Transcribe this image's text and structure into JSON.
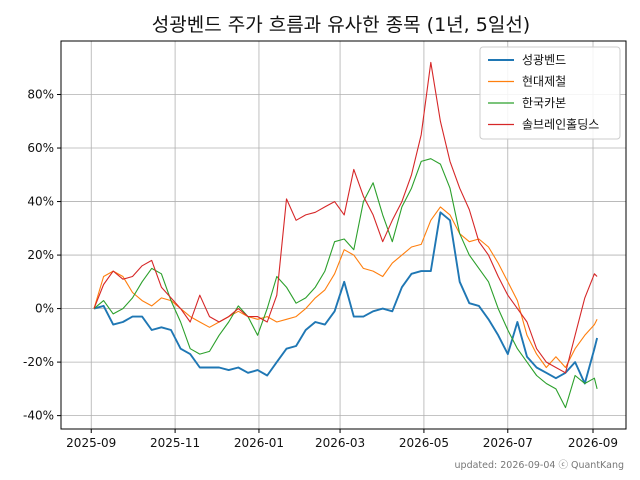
{
  "chart_data": {
    "type": "line",
    "title": "성광벤드 주가 흐름과 유사한 종목 (1년, 5일선)",
    "xlabel": "",
    "ylabel": "",
    "x_ticks": [
      "2025-09",
      "2025-11",
      "2026-01",
      "2026-03",
      "2026-05",
      "2026-07",
      "2026-09"
    ],
    "y_ticks": [
      -40,
      -20,
      0,
      20,
      40,
      60,
      80
    ],
    "y_tick_suffix": "%",
    "xlim": [
      "2025-08-10",
      "2026-09-25"
    ],
    "ylim": [
      -45,
      100
    ],
    "grid": true,
    "legend_position": "top-right",
    "footer": "updated: 2026-09-04 ⓒ QuantKang",
    "series": [
      {
        "name": "성광벤드",
        "color": "#1f77b4",
        "x": [
          "2025-09-03",
          "2025-09-10",
          "2025-09-17",
          "2025-09-24",
          "2025-10-01",
          "2025-10-08",
          "2025-10-15",
          "2025-10-22",
          "2025-10-29",
          "2025-11-05",
          "2025-11-12",
          "2025-11-19",
          "2025-11-26",
          "2025-12-03",
          "2025-12-10",
          "2025-12-17",
          "2025-12-24",
          "2025-12-31",
          "2026-01-07",
          "2026-01-14",
          "2026-01-21",
          "2026-01-28",
          "2026-02-04",
          "2026-02-11",
          "2026-02-18",
          "2026-02-25",
          "2026-03-04",
          "2026-03-11",
          "2026-03-18",
          "2026-03-25",
          "2026-04-01",
          "2026-04-08",
          "2026-04-15",
          "2026-04-22",
          "2026-04-29",
          "2026-05-06",
          "2026-05-13",
          "2026-05-20",
          "2026-05-27",
          "2026-06-03",
          "2026-06-10",
          "2026-06-17",
          "2026-06-24",
          "2026-07-01",
          "2026-07-08",
          "2026-07-15",
          "2026-07-22",
          "2026-07-29",
          "2026-08-05",
          "2026-08-12",
          "2026-08-19",
          "2026-08-26",
          "2026-09-02",
          "2026-09-04"
        ],
        "values": [
          0,
          1,
          -6,
          -5,
          -3,
          -3,
          -8,
          -7,
          -8,
          -15,
          -17,
          -22,
          -22,
          -22,
          -23,
          -22,
          -24,
          -23,
          -25,
          -20,
          -15,
          -14,
          -8,
          -5,
          -6,
          -1,
          10,
          -3,
          -3,
          -1,
          0,
          -1,
          8,
          13,
          14,
          14,
          36,
          33,
          10,
          2,
          1,
          -4,
          -10,
          -17,
          -5,
          -18,
          -22,
          -24,
          -26,
          -24,
          -20,
          -28,
          -15,
          -11
        ]
      },
      {
        "name": "현대제철",
        "color": "#ff7f0e",
        "x": [
          "2025-09-03",
          "2025-09-10",
          "2025-09-17",
          "2025-09-24",
          "2025-10-01",
          "2025-10-08",
          "2025-10-15",
          "2025-10-22",
          "2025-10-29",
          "2025-11-05",
          "2025-11-12",
          "2025-11-19",
          "2025-11-26",
          "2025-12-03",
          "2025-12-10",
          "2025-12-17",
          "2025-12-24",
          "2025-12-31",
          "2026-01-07",
          "2026-01-14",
          "2026-01-21",
          "2026-01-28",
          "2026-02-04",
          "2026-02-11",
          "2026-02-18",
          "2026-02-25",
          "2026-03-04",
          "2026-03-11",
          "2026-03-18",
          "2026-03-25",
          "2026-04-01",
          "2026-04-08",
          "2026-04-15",
          "2026-04-22",
          "2026-04-29",
          "2026-05-06",
          "2026-05-13",
          "2026-05-20",
          "2026-05-27",
          "2026-06-03",
          "2026-06-10",
          "2026-06-17",
          "2026-06-24",
          "2026-07-01",
          "2026-07-08",
          "2026-07-15",
          "2026-07-22",
          "2026-07-29",
          "2026-08-05",
          "2026-08-12",
          "2026-08-19",
          "2026-08-26",
          "2026-09-02",
          "2026-09-04"
        ],
        "values": [
          0,
          12,
          14,
          12,
          6,
          3,
          1,
          4,
          3,
          0,
          -3,
          -5,
          -7,
          -5,
          -3,
          -1,
          -3,
          -4,
          -3,
          -5,
          -4,
          -3,
          0,
          4,
          7,
          13,
          22,
          20,
          15,
          14,
          12,
          17,
          20,
          23,
          24,
          33,
          38,
          35,
          28,
          25,
          26,
          23,
          17,
          10,
          3,
          -10,
          -17,
          -22,
          -18,
          -22,
          -15,
          -10,
          -6,
          -4
        ]
      },
      {
        "name": "한국카본",
        "color": "#2ca02c",
        "x": [
          "2025-09-03",
          "2025-09-10",
          "2025-09-17",
          "2025-09-24",
          "2025-10-01",
          "2025-10-08",
          "2025-10-15",
          "2025-10-22",
          "2025-10-29",
          "2025-11-05",
          "2025-11-12",
          "2025-11-19",
          "2025-11-26",
          "2025-12-03",
          "2025-12-10",
          "2025-12-17",
          "2025-12-24",
          "2025-12-31",
          "2026-01-07",
          "2026-01-14",
          "2026-01-21",
          "2026-01-28",
          "2026-02-04",
          "2026-02-11",
          "2026-02-18",
          "2026-02-25",
          "2026-03-04",
          "2026-03-11",
          "2026-03-18",
          "2026-03-25",
          "2026-04-01",
          "2026-04-08",
          "2026-04-15",
          "2026-04-22",
          "2026-04-29",
          "2026-05-06",
          "2026-05-13",
          "2026-05-20",
          "2026-05-27",
          "2026-06-03",
          "2026-06-10",
          "2026-06-17",
          "2026-06-24",
          "2026-07-01",
          "2026-07-08",
          "2026-07-15",
          "2026-07-22",
          "2026-07-29",
          "2026-08-05",
          "2026-08-12",
          "2026-08-19",
          "2026-08-26",
          "2026-09-02",
          "2026-09-04"
        ],
        "values": [
          0,
          3,
          -2,
          0,
          4,
          10,
          15,
          13,
          3,
          -5,
          -15,
          -17,
          -16,
          -10,
          -5,
          1,
          -3,
          -10,
          0,
          12,
          8,
          2,
          4,
          8,
          14,
          25,
          26,
          22,
          40,
          47,
          35,
          25,
          38,
          45,
          55,
          56,
          54,
          45,
          28,
          20,
          15,
          10,
          0,
          -8,
          -15,
          -20,
          -25,
          -28,
          -30,
          -37,
          -25,
          -28,
          -26,
          -30
        ]
      },
      {
        "name": "솔브레인홀딩스",
        "color": "#d62728",
        "x": [
          "2025-09-03",
          "2025-09-10",
          "2025-09-17",
          "2025-09-24",
          "2025-10-01",
          "2025-10-08",
          "2025-10-15",
          "2025-10-22",
          "2025-10-29",
          "2025-11-05",
          "2025-11-12",
          "2025-11-19",
          "2025-11-26",
          "2025-12-03",
          "2025-12-10",
          "2025-12-17",
          "2025-12-24",
          "2025-12-31",
          "2026-01-07",
          "2026-01-14",
          "2026-01-21",
          "2026-01-28",
          "2026-02-04",
          "2026-02-11",
          "2026-02-18",
          "2026-02-25",
          "2026-03-04",
          "2026-03-11",
          "2026-03-18",
          "2026-03-25",
          "2026-04-01",
          "2026-04-08",
          "2026-04-15",
          "2026-04-22",
          "2026-04-29",
          "2026-05-06",
          "2026-05-13",
          "2026-05-20",
          "2026-05-27",
          "2026-06-03",
          "2026-06-10",
          "2026-06-17",
          "2026-06-24",
          "2026-07-01",
          "2026-07-08",
          "2026-07-15",
          "2026-07-22",
          "2026-07-29",
          "2026-08-05",
          "2026-08-12",
          "2026-08-19",
          "2026-08-26",
          "2026-09-02",
          "2026-09-04"
        ],
        "values": [
          0,
          9,
          14,
          11,
          12,
          16,
          18,
          8,
          4,
          0,
          -5,
          5,
          -3,
          -5,
          -3,
          0,
          -3,
          -3,
          -5,
          5,
          41,
          33,
          35,
          36,
          38,
          40,
          35,
          52,
          42,
          35,
          25,
          33,
          40,
          50,
          65,
          92,
          70,
          55,
          45,
          37,
          25,
          20,
          12,
          5,
          0,
          -5,
          -15,
          -20,
          -22,
          -24,
          -10,
          4,
          13,
          12
        ]
      }
    ]
  }
}
